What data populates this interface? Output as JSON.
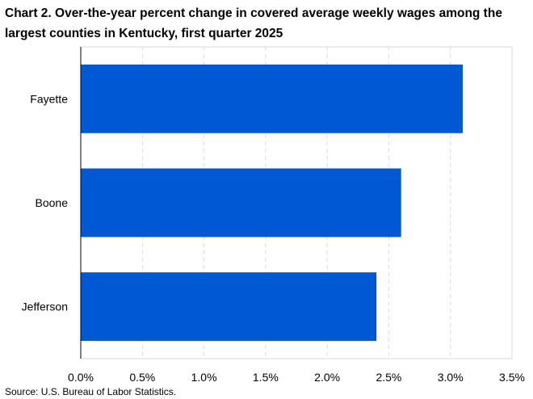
{
  "chart_data": {
    "type": "bar",
    "orientation": "horizontal",
    "title": "Chart 2. Over-the-year percent change in covered average weekly wages among the largest counties in Kentucky, first quarter 2025",
    "categories": [
      "Fayette",
      "Boone",
      "Jefferson"
    ],
    "values": [
      3.1,
      2.6,
      2.4
    ],
    "unit": "%",
    "xlim": [
      0,
      3.5
    ],
    "x_ticks": [
      0,
      0.5,
      1.0,
      1.5,
      2.0,
      2.5,
      3.0,
      3.5
    ],
    "x_tick_labels": [
      "0.0%",
      "0.5%",
      "1.0%",
      "1.5%",
      "2.0%",
      "2.5%",
      "3.0%",
      "3.5%"
    ],
    "xlabel": "",
    "ylabel": "",
    "grid": "vertical dashed",
    "legend": "none",
    "bar_color": "#0059D2",
    "grid_color": "#D9D9D9",
    "border_color": "#D9D9D9"
  },
  "source": "Source: U.S. Bureau of Labor Statistics."
}
